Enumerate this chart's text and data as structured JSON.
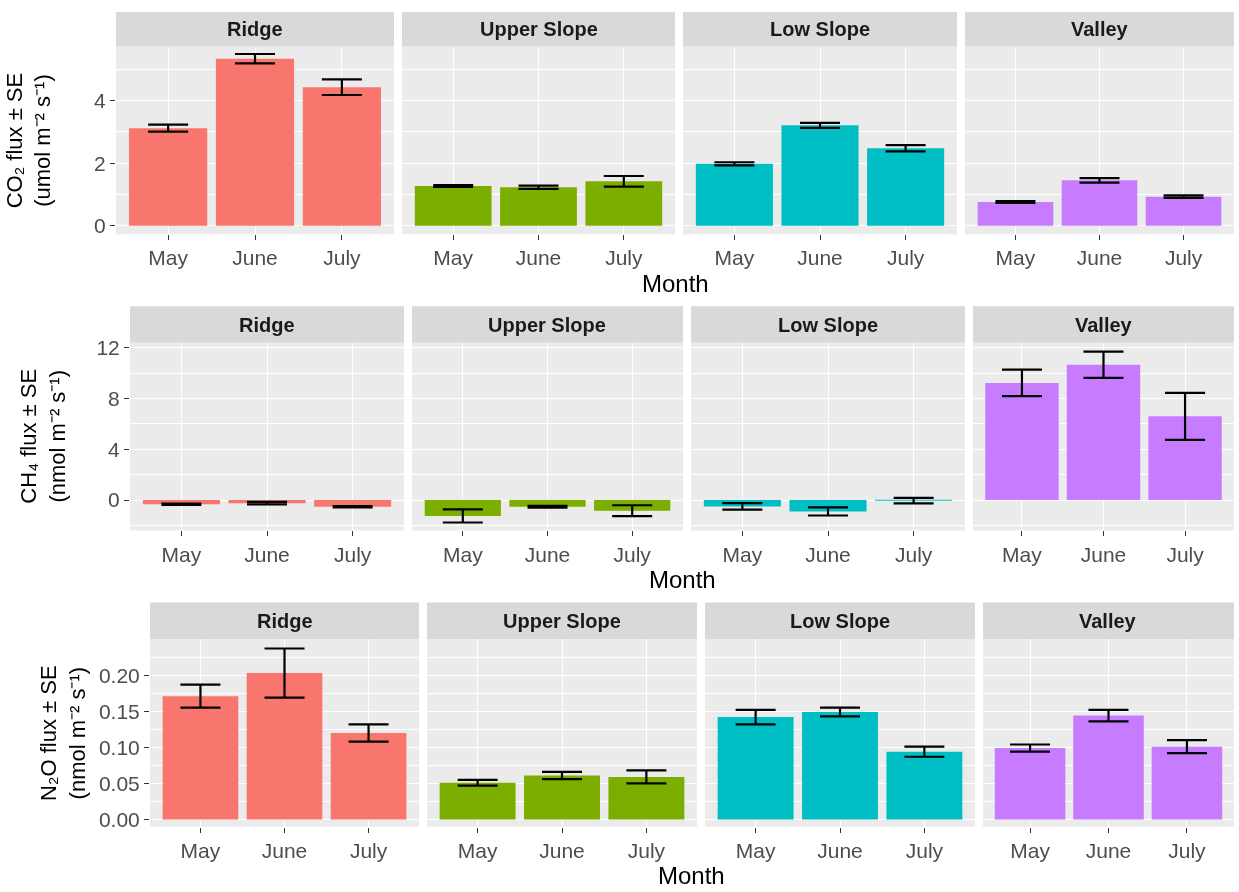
{
  "chart_data": [
    {
      "type": "bar",
      "title": "Ridge",
      "ylabel": "CO₂ flux ± SE\n(umol m⁻² s⁻¹)",
      "categories": [
        "May",
        "June",
        "July"
      ],
      "values": [
        3.12,
        5.34,
        4.43
      ],
      "errors": [
        0.11,
        0.15,
        0.25
      ],
      "color": "#f8766d",
      "ylim": [
        -0.27,
        5.73
      ],
      "yticks": [
        0,
        2,
        4
      ],
      "grid": true
    },
    {
      "type": "bar",
      "title": "Upper Slope",
      "xlabel": "Month",
      "categories": [
        "May",
        "June",
        "July"
      ],
      "values": [
        1.27,
        1.23,
        1.42
      ],
      "errors": [
        0.03,
        0.05,
        0.17
      ],
      "color": "#7cae00",
      "ylim": [
        -0.27,
        5.73
      ],
      "yticks": [
        0,
        2,
        4
      ],
      "grid": true,
      "tick_labels": "x"
    },
    {
      "type": "bar",
      "title": "Low Slope",
      "categories": [
        "May",
        "June",
        "July"
      ],
      "values": [
        1.98,
        3.21,
        2.48
      ],
      "errors": [
        0.05,
        0.08,
        0.1
      ],
      "color": "#00bfc4",
      "ylim": [
        -0.27,
        5.73
      ],
      "yticks": [
        0,
        2,
        4
      ],
      "grid": true,
      "tick_labels": "x"
    },
    {
      "type": "bar",
      "title": "Valley",
      "categories": [
        "May",
        "June",
        "July"
      ],
      "values": [
        0.76,
        1.45,
        0.93
      ],
      "errors": [
        0.03,
        0.07,
        0.04
      ],
      "color": "#c77cff",
      "ylim": [
        -0.27,
        5.73
      ],
      "yticks": [
        0,
        2,
        4
      ],
      "grid": true,
      "tick_labels": "x"
    },
    {
      "type": "bar",
      "title": "Ridge",
      "ylabel": "CH₄ flux ± SE\n(nmol m⁻² s⁻¹)",
      "categories": [
        "May",
        "June",
        "July"
      ],
      "values": [
        -0.34,
        -0.25,
        -0.53
      ],
      "errors": [
        0.05,
        0.1,
        0.05
      ],
      "color": "#f8766d",
      "ylim": [
        -2.4,
        12.4
      ],
      "yticks": [
        0,
        4,
        8,
        12
      ],
      "grid": true
    },
    {
      "type": "bar",
      "title": "Upper Slope",
      "xlabel": "Month",
      "categories": [
        "May",
        "June",
        "July"
      ],
      "values": [
        -1.25,
        -0.53,
        -0.84
      ],
      "errors": [
        0.52,
        0.08,
        0.43
      ],
      "color": "#7cae00",
      "ylim": [
        -2.4,
        12.4
      ],
      "yticks": [
        0,
        4,
        8,
        12
      ],
      "grid": true,
      "tick_labels": "x"
    },
    {
      "type": "bar",
      "title": "Low Slope",
      "categories": [
        "May",
        "June",
        "July"
      ],
      "values": [
        -0.5,
        -0.9,
        -0.05
      ],
      "errors": [
        0.25,
        0.32,
        0.22
      ],
      "color": "#00bfc4",
      "ylim": [
        -2.4,
        12.4
      ],
      "yticks": [
        0,
        4,
        8,
        12
      ],
      "grid": true,
      "tick_labels": "x"
    },
    {
      "type": "bar",
      "title": "Valley",
      "categories": [
        "May",
        "June",
        "July"
      ],
      "values": [
        9.24,
        10.67,
        6.6
      ],
      "errors": [
        1.04,
        1.04,
        1.85
      ],
      "color": "#c77cff",
      "ylim": [
        -2.4,
        12.4
      ],
      "yticks": [
        0,
        4,
        8,
        12
      ],
      "grid": true,
      "tick_labels": "x"
    },
    {
      "type": "bar",
      "title": "Ridge",
      "ylabel": "N₂O flux ± SE\n(nmol m⁻² s⁻¹)",
      "categories": [
        "May",
        "June",
        "July"
      ],
      "values": [
        0.171,
        0.203,
        0.12
      ],
      "errors": [
        0.016,
        0.034,
        0.012
      ],
      "color": "#f8766d",
      "ylim": [
        -0.01,
        0.25
      ],
      "yticks": [
        {
          "value": 0,
          "label": "0.00"
        },
        {
          "value": 0.05,
          "label": "0.05"
        },
        {
          "value": 0.1,
          "label": "0.10"
        },
        {
          "value": 0.15,
          "label": "0.15"
        },
        {
          "value": 0.2,
          "label": "0.20"
        }
      ],
      "grid": true
    },
    {
      "type": "bar",
      "title": "Upper Slope",
      "xlabel": "Month",
      "categories": [
        "May",
        "June",
        "July"
      ],
      "values": [
        0.051,
        0.061,
        0.059
      ],
      "errors": [
        0.004,
        0.005,
        0.009
      ],
      "color": "#7cae00",
      "ylim": [
        -0.01,
        0.25
      ],
      "yticks": [
        0,
        0.05,
        0.1,
        0.15,
        0.2
      ],
      "grid": true,
      "tick_labels": "x"
    },
    {
      "type": "bar",
      "title": "Low Slope",
      "categories": [
        "May",
        "June",
        "July"
      ],
      "values": [
        0.142,
        0.149,
        0.094
      ],
      "errors": [
        0.01,
        0.006,
        0.007
      ],
      "color": "#00bfc4",
      "ylim": [
        -0.01,
        0.25
      ],
      "yticks": [
        0,
        0.05,
        0.1,
        0.15,
        0.2
      ],
      "grid": true,
      "tick_labels": "x"
    },
    {
      "type": "bar",
      "title": "Valley",
      "categories": [
        "May",
        "June",
        "July"
      ],
      "values": [
        0.099,
        0.144,
        0.101
      ],
      "errors": [
        0.005,
        0.008,
        0.009
      ],
      "color": "#c77cff",
      "ylim": [
        -0.01,
        0.25
      ],
      "yticks": [
        0,
        0.05,
        0.1,
        0.15,
        0.2
      ],
      "grid": true,
      "tick_labels": "x"
    }
  ]
}
